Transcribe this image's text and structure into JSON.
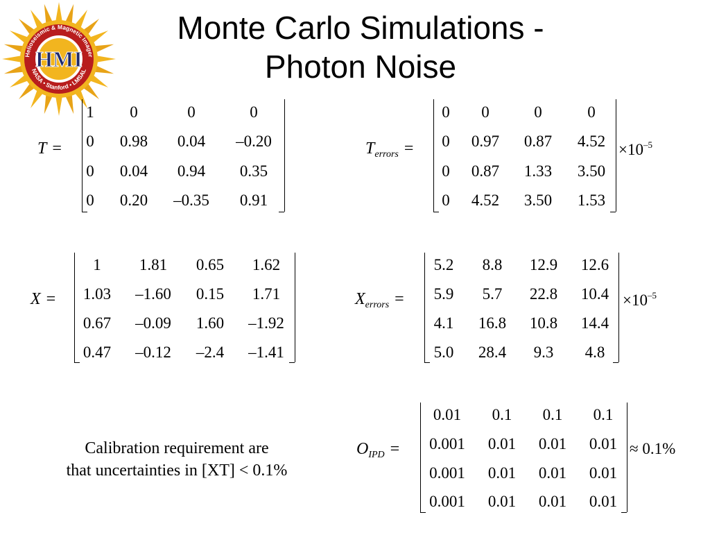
{
  "logo": {
    "initials": "HMI",
    "ring_text": "Helioseismic & Magnetic Imager",
    "bottom_text": "NASA • Stanford • LMSAL",
    "colors": {
      "sun": "#f2b51f",
      "ray": "#e8a317",
      "inner": "#b81d1d",
      "ring": "#ffffff"
    }
  },
  "title": {
    "line1": "Monte Carlo Simulations -",
    "line2": "Photon Noise"
  },
  "matrices": {
    "T": {
      "symbol": "T",
      "subscript": "",
      "relation": "=",
      "scale_prefix": "",
      "scale_exp": "",
      "rows": [
        [
          "1",
          "0",
          "0",
          "0"
        ],
        [
          "0",
          "0.98",
          "0.04",
          "–0.20"
        ],
        [
          "0",
          "0.04",
          "0.94",
          "0.35"
        ],
        [
          "0",
          "0.20",
          "–0.35",
          "0.91"
        ]
      ]
    },
    "T_err": {
      "symbol": "T",
      "subscript": "errors",
      "relation": "=",
      "scale_prefix": "×10",
      "scale_exp": "–5",
      "rows": [
        [
          "0",
          "0",
          "0",
          "0"
        ],
        [
          "0",
          "0.97",
          "0.87",
          "4.52"
        ],
        [
          "0",
          "0.87",
          "1.33",
          "3.50"
        ],
        [
          "0",
          "4.52",
          "3.50",
          "1.53"
        ]
      ]
    },
    "X": {
      "symbol": "X",
      "subscript": "",
      "relation": "=",
      "scale_prefix": "",
      "scale_exp": "",
      "rows": [
        [
          "1",
          "1.81",
          "0.65",
          "1.62"
        ],
        [
          "1.03",
          "–1.60",
          "0.15",
          "1.71"
        ],
        [
          "0.67",
          "–0.09",
          "1.60",
          "–1.92"
        ],
        [
          "0.47",
          "–0.12",
          "–2.4",
          "–1.41"
        ]
      ]
    },
    "X_err": {
      "symbol": "X",
      "subscript": "errors",
      "relation": "=",
      "scale_prefix": "×10",
      "scale_exp": "–5",
      "rows": [
        [
          "5.2",
          "8.8",
          "12.9",
          "12.6"
        ],
        [
          "5.9",
          "5.7",
          "22.8",
          "10.4"
        ],
        [
          "4.1",
          "16.8",
          "10.8",
          "14.4"
        ],
        [
          "5.0",
          "28.4",
          "9.3",
          "4.8"
        ]
      ]
    },
    "O": {
      "symbol": "O",
      "subscript": "IPD",
      "relation": "=",
      "scale_prefix": "≈ 0.1%",
      "scale_exp": "",
      "rows": [
        [
          "0.01",
          "0.1",
          "0.1",
          "0.1"
        ],
        [
          "0.001",
          "0.01",
          "0.01",
          "0.01"
        ],
        [
          "0.001",
          "0.01",
          "0.01",
          "0.01"
        ],
        [
          "0.001",
          "0.01",
          "0.01",
          "0.01"
        ]
      ]
    }
  },
  "note": {
    "line1": "Calibration requirement are",
    "line2": "that uncertainties in [XT] < 0.1%"
  }
}
